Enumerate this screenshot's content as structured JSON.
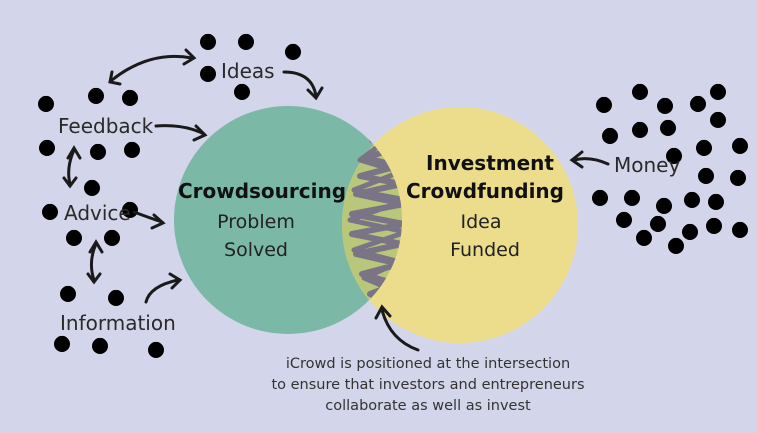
{
  "colors": {
    "background": "#d3d6eb",
    "crowdsourcing_circle": "#7bb8a6",
    "crowdfunding_circle": "#ebdd8c",
    "intersection": "#b8c77a",
    "scribble": "#7b7487"
  },
  "left_labels": {
    "ideas": "Ideas",
    "feedback": "Feedback",
    "advice": "Advice",
    "information": "Information"
  },
  "right_labels": {
    "money": "Money"
  },
  "crowdsourcing": {
    "title": "Crowdsourcing",
    "line1": "Problem",
    "line2": "Solved"
  },
  "crowdfunding": {
    "title_line1": "Investment",
    "title_line2": "Crowdfunding",
    "line1": "Idea",
    "line2": "Funded"
  },
  "intersection_note": {
    "line1": "iCrowd is positioned at the intersection",
    "line2": "to ensure that investors and entrepreneurs",
    "line3": "collaborate as well as invest"
  },
  "icons": {
    "face": "smiley-face-icon",
    "arrow": "curved-arrow-icon"
  }
}
